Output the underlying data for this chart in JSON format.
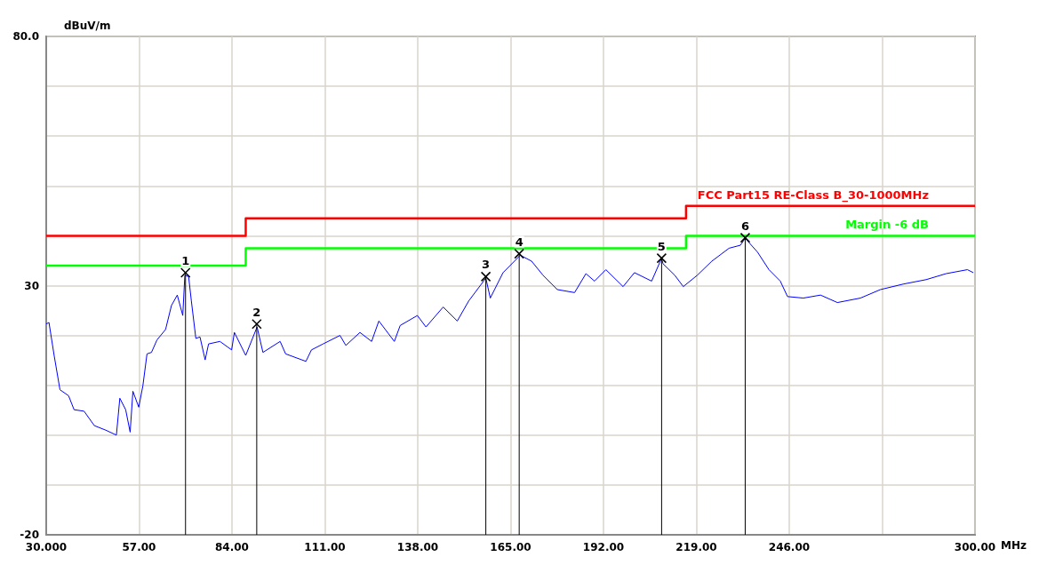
{
  "chart_data": {
    "type": "line",
    "xlabel": "MHz",
    "ylabel": "dBuV/m",
    "xlim": [
      30,
      300
    ],
    "xticks": [
      {
        "value": 30,
        "label": "30.000"
      },
      {
        "value": 57,
        "label": "57.00"
      },
      {
        "value": 84,
        "label": "84.00"
      },
      {
        "value": 111,
        "label": "111.00"
      },
      {
        "value": 138,
        "label": "138.00"
      },
      {
        "value": 165,
        "label": "165.00"
      },
      {
        "value": 192,
        "label": "192.00"
      },
      {
        "value": 219,
        "label": "219.00"
      },
      {
        "value": 246,
        "label": "246.00"
      },
      {
        "value": 273,
        "label": null
      },
      {
        "value": 300,
        "label": "300.00"
      }
    ],
    "ylim": [
      -20,
      80
    ],
    "yticks": [
      {
        "value": -20,
        "label": "-20"
      },
      {
        "value": -10,
        "label": null
      },
      {
        "value": 0,
        "label": null
      },
      {
        "value": 10,
        "label": null
      },
      {
        "value": 20,
        "label": null
      },
      {
        "value": 30,
        "label": "30"
      },
      {
        "value": 40,
        "label": null
      },
      {
        "value": 50,
        "label": null
      },
      {
        "value": 60,
        "label": null
      },
      {
        "value": 70,
        "label": null
      },
      {
        "value": 80,
        "label": "80.0"
      }
    ],
    "grid": true,
    "legend": false,
    "marker": "none",
    "line_style": "solid",
    "series": [
      {
        "color": "#0000ff",
        "x": [
          30,
          30.8,
          32.3,
          34,
          36.5,
          38.1,
          41,
          44,
          47.3,
          50.4,
          51.4,
          53.1,
          54.4,
          55.2,
          56.9,
          58.1,
          59.3,
          60.6,
          62.2,
          64.7,
          66.4,
          68.1,
          69.7,
          70.3,
          71.4,
          72.2,
          73.5,
          74.7,
          76.2,
          77.2,
          80.5,
          83.9,
          84.7,
          88,
          91.3,
          93,
          98,
          99.6,
          105.5,
          107.1,
          110.5,
          115.4,
          117.1,
          121.2,
          124.6,
          126.7,
          131.2,
          132.9,
          137.9,
          140.4,
          145.4,
          149.5,
          152.8,
          157.8,
          159.1,
          162.8,
          166.1,
          167.8,
          171.1,
          174.4,
          178.6,
          183.6,
          186.9,
          189.4,
          192.7,
          197.7,
          201,
          206,
          208.9,
          209.3,
          212.7,
          215.2,
          219.3,
          223.5,
          228.5,
          231.8,
          233.2,
          236.8,
          240.1,
          243.4,
          245.5,
          250.1,
          255.1,
          260,
          266.7,
          272.5,
          279.1,
          285.8,
          291.6,
          297.8,
          299.5
        ],
        "values": [
          22.3,
          22.6,
          16,
          9.1,
          7.9,
          5.1,
          4.8,
          1.9,
          1,
          0,
          7.4,
          5.1,
          0.6,
          8.8,
          5.6,
          9.9,
          16.3,
          16.6,
          19.1,
          21.2,
          26,
          28.1,
          24,
          32.1,
          31.8,
          26.9,
          19.4,
          19.7,
          15.1,
          18.3,
          18.8,
          17.1,
          20.6,
          16,
          21.7,
          16.6,
          18.8,
          16.3,
          14.8,
          17.1,
          18.3,
          20,
          18,
          20.6,
          18.8,
          22.9,
          18.8,
          22,
          24,
          21.7,
          25.7,
          22.9,
          26.9,
          31.5,
          27.5,
          32.6,
          34.9,
          36.1,
          34.9,
          32.1,
          29.2,
          28.6,
          32.4,
          30.9,
          33.2,
          29.8,
          32.6,
          30.9,
          35.5,
          34.4,
          32.1,
          29.8,
          32.1,
          34.9,
          37.5,
          38.1,
          39.5,
          36.7,
          33.2,
          30.9,
          27.8,
          27.5,
          28.1,
          26.6,
          27.5,
          29.2,
          30.3,
          31.2,
          32.4,
          33.2,
          32.6
        ]
      },
      {
        "type": "step",
        "name": "FCC Part15 RE-Class B_30-1000MHz",
        "color": "#ff0000",
        "x": [
          30,
          88,
          216,
          300
        ],
        "values": [
          40,
          43.5,
          46,
          46
        ]
      },
      {
        "type": "step",
        "name": "Margin -6 dB",
        "color": "#00ff00",
        "x": [
          30,
          88,
          216,
          300
        ],
        "values": [
          34,
          37.5,
          40,
          40
        ]
      }
    ],
    "annotations": [
      {
        "text": "1",
        "x": 70.5,
        "y": 32.6
      },
      {
        "text": "2",
        "x": 91.2,
        "y": 22.3
      },
      {
        "text": "3",
        "x": 157.8,
        "y": 31.8
      },
      {
        "text": "4",
        "x": 167.5,
        "y": 36.4
      },
      {
        "text": "5",
        "x": 208.9,
        "y": 35.5
      },
      {
        "text": "6",
        "x": 233.2,
        "y": 39.6
      }
    ]
  }
}
